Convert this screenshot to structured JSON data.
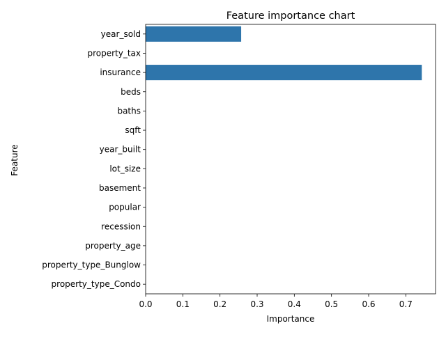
{
  "chart_data": {
    "type": "bar",
    "orientation": "horizontal",
    "title": "Feature importance chart",
    "xlabel": "Importance",
    "ylabel": "Feature",
    "categories": [
      "year_sold",
      "property_tax",
      "insurance",
      "beds",
      "baths",
      "sqft",
      "year_built",
      "lot_size",
      "basement",
      "popular",
      "recession",
      "property_age",
      "property_type_Bunglow",
      "property_type_Condo"
    ],
    "values": [
      0.257,
      0.0,
      0.743,
      0.0,
      0.0,
      0.0,
      0.0,
      0.0,
      0.0,
      0.0,
      0.0,
      0.0,
      0.0,
      0.0
    ],
    "xlim": [
      0,
      0.78
    ],
    "xticks": [
      0.0,
      0.1,
      0.2,
      0.3,
      0.4,
      0.5,
      0.6,
      0.7
    ],
    "xtick_labels": [
      "0.0",
      "0.1",
      "0.2",
      "0.3",
      "0.4",
      "0.5",
      "0.6",
      "0.7"
    ],
    "bar_color": "#2e75ab",
    "grid": false,
    "legend": "none"
  }
}
